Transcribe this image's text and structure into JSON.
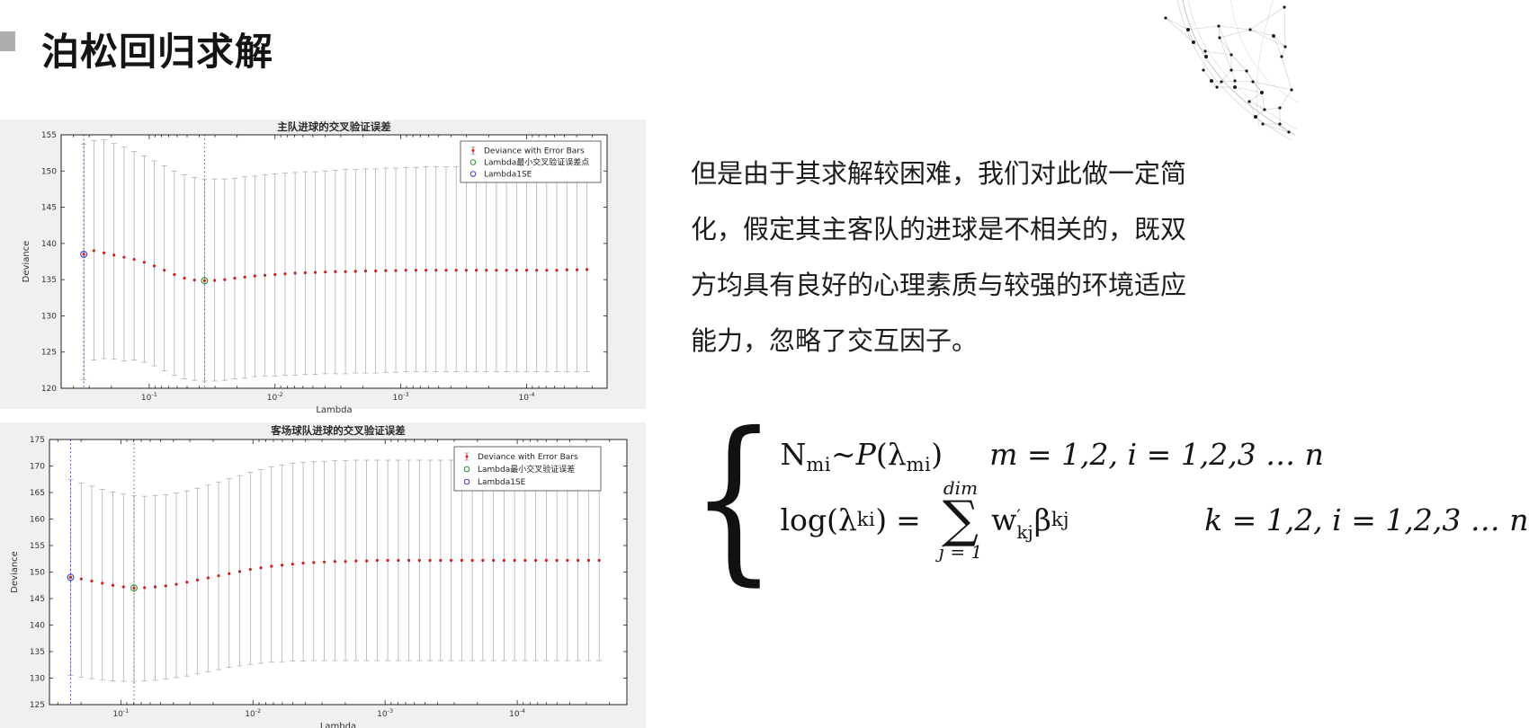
{
  "slide": {
    "title": "泊松回归求解"
  },
  "paragraph": {
    "lines": [
      "但是由于其求解较困难，我们对此做一定简",
      "化，假定其主客队的进球是不相关的，既双",
      "方均具有良好的心理素质与较强的环境适应",
      "能力，忽略了交互因子。"
    ]
  },
  "formula": {
    "brace": "{",
    "l1": {
      "N": "N",
      "N_sub": "mi",
      "sim": "~",
      "P": "P",
      "open": "(",
      "lambda": "λ",
      "lambda_sub": "mi",
      "close": ")",
      "condition": "m = 1,2, i = 1,2,3 … n"
    },
    "l2": {
      "log": "log",
      "open": "(",
      "lambda": "λ",
      "lambda_sub": "ki",
      "close": ")",
      "equals": "=",
      "sum_upper": "dim",
      "sigma": "∑",
      "sum_lower": "j = 1",
      "w": "w",
      "w_prime": "′",
      "w_sub": "kj",
      "beta": "β",
      "beta_sub": "kj",
      "condition": "k = 1,2, i = 1,2,3 … n"
    }
  },
  "colors": {
    "panel_bg": "#f0f0f0",
    "plot_bg": "#ffffff",
    "dots": "#cc2222",
    "error_bar": "#a6a6a6",
    "green": "#2f8f2f",
    "blue": "#3b3bc8",
    "axis": "#222222",
    "bullet": "#aeaeae"
  },
  "chart_data": [
    {
      "type": "scatter",
      "subtype": "errorbar",
      "title": "主队进球的交叉验证误差",
      "xlabel": "Lambda",
      "ylabel": "Deviance",
      "ylim": [
        120,
        155
      ],
      "ytick_step": 5,
      "x_axis_note": "Lambda on reversed log scale; t = -log10(Lambda)",
      "xtick_exponents": [
        1,
        2,
        3,
        4
      ],
      "xtick_labels": [
        "10^-1",
        "10^-2",
        "10^-3",
        "10^-4"
      ],
      "xlim_t": [
        0.3,
        4.64
      ],
      "grid": false,
      "legend_position": "top-right",
      "legend": [
        {
          "marker": "errorbar",
          "label": "Deviance with Error Bars"
        },
        {
          "marker": "circle-green",
          "label": "Lambda最小交叉验证误差点"
        },
        {
          "marker": "circle-blue",
          "label": "Lambda1SE"
        }
      ],
      "se_point": {
        "t": 0.48,
        "y": 138.5
      },
      "min_point": {
        "t": 1.44,
        "y": 134.85
      },
      "points_format": [
        "t=-log10(lambda)",
        "deviance",
        "lower",
        "upper"
      ],
      "points": [
        [
          0.48,
          138.5,
          121.2,
          153.7
        ],
        [
          0.56,
          139.0,
          123.9,
          154.2
        ],
        [
          0.64,
          138.7,
          124.1,
          154.3
        ],
        [
          0.72,
          138.4,
          124.0,
          153.8
        ],
        [
          0.8,
          138.1,
          123.8,
          153.3
        ],
        [
          0.88,
          137.8,
          123.9,
          152.7
        ],
        [
          0.96,
          137.4,
          123.6,
          152.1
        ],
        [
          1.04,
          136.9,
          123.1,
          151.4
        ],
        [
          1.12,
          136.3,
          122.4,
          150.7
        ],
        [
          1.2,
          135.7,
          121.8,
          150.0
        ],
        [
          1.28,
          135.2,
          121.3,
          149.5
        ],
        [
          1.36,
          134.95,
          121.1,
          149.1
        ],
        [
          1.44,
          134.85,
          121.0,
          148.9
        ],
        [
          1.52,
          134.9,
          121.0,
          148.9
        ],
        [
          1.6,
          135.0,
          121.1,
          148.9
        ],
        [
          1.68,
          135.2,
          121.3,
          149.0
        ],
        [
          1.76,
          135.35,
          121.4,
          149.2
        ],
        [
          1.84,
          135.5,
          121.6,
          149.3
        ],
        [
          1.92,
          135.6,
          121.7,
          149.5
        ],
        [
          2.0,
          135.7,
          121.7,
          149.6
        ],
        [
          2.08,
          135.8,
          121.8,
          149.7
        ],
        [
          2.16,
          135.9,
          121.8,
          149.8
        ],
        [
          2.24,
          135.95,
          121.9,
          149.9
        ],
        [
          2.32,
          136.0,
          121.9,
          149.9
        ],
        [
          2.4,
          136.05,
          122.0,
          150.0
        ],
        [
          2.48,
          136.1,
          122.0,
          150.1
        ],
        [
          2.56,
          136.1,
          122.0,
          150.2
        ],
        [
          2.64,
          136.15,
          122.1,
          150.2
        ],
        [
          2.72,
          136.2,
          122.1,
          150.3
        ],
        [
          2.8,
          136.2,
          122.1,
          150.3
        ],
        [
          2.88,
          136.25,
          122.2,
          150.4
        ],
        [
          2.96,
          136.25,
          122.2,
          150.4
        ],
        [
          3.04,
          136.3,
          122.3,
          150.5
        ],
        [
          3.12,
          136.3,
          122.3,
          150.5
        ],
        [
          3.2,
          136.3,
          122.3,
          150.6
        ],
        [
          3.28,
          136.3,
          122.3,
          150.6
        ],
        [
          3.36,
          136.3,
          122.3,
          150.6
        ],
        [
          3.44,
          136.3,
          122.3,
          150.6
        ],
        [
          3.52,
          136.3,
          122.3,
          150.6
        ],
        [
          3.6,
          136.3,
          122.3,
          150.5
        ],
        [
          3.68,
          136.3,
          122.3,
          150.5
        ],
        [
          3.76,
          136.3,
          122.3,
          150.5
        ],
        [
          3.84,
          136.3,
          122.3,
          150.5
        ],
        [
          3.92,
          136.3,
          122.3,
          150.5
        ],
        [
          4.0,
          136.3,
          122.3,
          150.5
        ],
        [
          4.08,
          136.3,
          122.3,
          150.5
        ],
        [
          4.16,
          136.3,
          122.3,
          150.5
        ],
        [
          4.24,
          136.3,
          122.3,
          150.5
        ],
        [
          4.32,
          136.35,
          122.3,
          150.5
        ],
        [
          4.4,
          136.35,
          122.3,
          150.5
        ],
        [
          4.48,
          136.4,
          122.3,
          150.5
        ]
      ]
    },
    {
      "type": "scatter",
      "subtype": "errorbar",
      "title": "客场球队进球的交叉验证误差",
      "xlabel": "Lambda",
      "ylabel": "Deviance",
      "ylim": [
        125,
        175
      ],
      "ytick_step": 5,
      "x_axis_note": "Lambda on reversed log scale; t = -log10(Lambda)",
      "xtick_exponents": [
        1,
        2,
        3,
        4
      ],
      "xtick_labels": [
        "10^-1",
        "10^-2",
        "10^-3",
        "10^-4"
      ],
      "xlim_t": [
        0.46,
        4.83
      ],
      "grid": false,
      "legend_position": "top-right",
      "legend": [
        {
          "marker": "errorbar",
          "label": "Deviance with Error Bars"
        },
        {
          "marker": "circle-green",
          "label": "Lambda最小交叉验证误差"
        },
        {
          "marker": "circle-blue",
          "label": "Lambda1SE"
        }
      ],
      "se_point": {
        "t": 0.62,
        "y": 149.0
      },
      "min_point": {
        "t": 1.1,
        "y": 147.0
      },
      "points_format": [
        "t=-log10(lambda)",
        "deviance",
        "lower",
        "upper"
      ],
      "points": [
        [
          0.62,
          149.0,
          130.5,
          167.5
        ],
        [
          0.7,
          148.7,
          130.2,
          166.8
        ],
        [
          0.78,
          148.3,
          129.9,
          166.2
        ],
        [
          0.86,
          147.9,
          129.7,
          165.6
        ],
        [
          0.94,
          147.5,
          129.5,
          165.1
        ],
        [
          1.02,
          147.2,
          129.4,
          164.7
        ],
        [
          1.1,
          147.0,
          129.4,
          164.4
        ],
        [
          1.18,
          147.05,
          129.5,
          164.3
        ],
        [
          1.26,
          147.2,
          129.6,
          164.4
        ],
        [
          1.34,
          147.4,
          129.8,
          164.6
        ],
        [
          1.42,
          147.7,
          130.1,
          164.9
        ],
        [
          1.5,
          148.1,
          130.4,
          165.3
        ],
        [
          1.58,
          148.5,
          130.8,
          165.8
        ],
        [
          1.66,
          148.9,
          131.2,
          166.4
        ],
        [
          1.74,
          149.3,
          131.6,
          167.0
        ],
        [
          1.82,
          149.7,
          132.0,
          167.6
        ],
        [
          1.9,
          150.1,
          132.3,
          168.2
        ],
        [
          1.98,
          150.5,
          132.6,
          168.8
        ],
        [
          2.06,
          150.8,
          132.8,
          169.3
        ],
        [
          2.14,
          151.1,
          133.0,
          169.8
        ],
        [
          2.22,
          151.3,
          133.1,
          170.2
        ],
        [
          2.3,
          151.5,
          133.2,
          170.5
        ],
        [
          2.38,
          151.7,
          133.2,
          170.7
        ],
        [
          2.46,
          151.8,
          133.3,
          170.8
        ],
        [
          2.54,
          151.9,
          133.3,
          170.9
        ],
        [
          2.62,
          152.0,
          133.3,
          171.0
        ],
        [
          2.7,
          152.0,
          133.3,
          171.0
        ],
        [
          2.78,
          152.1,
          133.3,
          171.1
        ],
        [
          2.86,
          152.1,
          133.3,
          171.1
        ],
        [
          2.94,
          152.2,
          133.3,
          171.1
        ],
        [
          3.02,
          152.2,
          133.3,
          171.1
        ],
        [
          3.1,
          152.2,
          133.3,
          171.1
        ],
        [
          3.18,
          152.2,
          133.3,
          171.1
        ],
        [
          3.26,
          152.2,
          133.3,
          171.1
        ],
        [
          3.34,
          152.2,
          133.3,
          171.1
        ],
        [
          3.42,
          152.2,
          133.3,
          171.1
        ],
        [
          3.5,
          152.2,
          133.3,
          171.1
        ],
        [
          3.58,
          152.2,
          133.3,
          171.1
        ],
        [
          3.66,
          152.2,
          133.3,
          171.1
        ],
        [
          3.74,
          152.2,
          133.3,
          171.1
        ],
        [
          3.82,
          152.2,
          133.3,
          171.1
        ],
        [
          3.9,
          152.2,
          133.3,
          171.1
        ],
        [
          3.98,
          152.2,
          133.3,
          171.1
        ],
        [
          4.06,
          152.2,
          133.3,
          171.1
        ],
        [
          4.14,
          152.2,
          133.3,
          171.1
        ],
        [
          4.22,
          152.2,
          133.3,
          171.1
        ],
        [
          4.3,
          152.2,
          133.3,
          171.1
        ],
        [
          4.38,
          152.2,
          133.3,
          171.1
        ],
        [
          4.46,
          152.2,
          133.3,
          171.1
        ],
        [
          4.54,
          152.2,
          133.3,
          171.1
        ],
        [
          4.62,
          152.2,
          133.3,
          171.1
        ]
      ]
    }
  ]
}
